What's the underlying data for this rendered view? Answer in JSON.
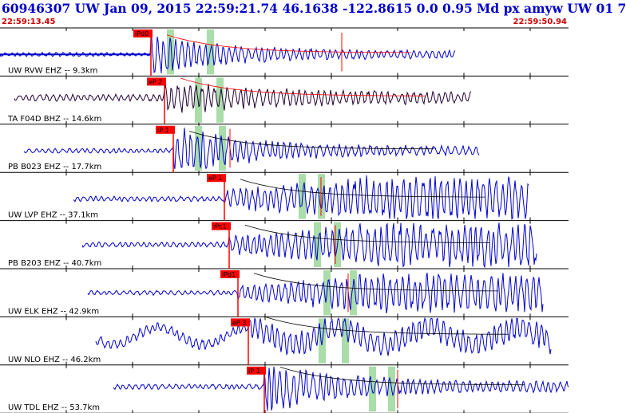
{
  "header": {
    "title": "60946307 UW Jan 09, 2015 22:59:21.74   46.1638 -122.8615  0.0 0.95 Md px amyw UW 01    7",
    "start_time": "22:59:13.45",
    "end_time": "22:59:50.94"
  },
  "colors": {
    "trace": "#0000cc",
    "trace_alt": "#220033",
    "pick": "#ff0000",
    "coda_window": "#aaddaa",
    "label_text": "#000000",
    "header_text": "#0000cc",
    "time_text": "#cc0000"
  },
  "panels": [
    {
      "label": "UW RVW EHZ -- 9.3km",
      "pick": "iPd0",
      "trace_color": "trace",
      "amp": 14,
      "start_pick": 0.26
    },
    {
      "label": "TA F04D BHZ -- 14.6km",
      "pick": "eP 2",
      "trace_color": "trace_alt",
      "amp": 12,
      "start_pick": 0.28
    },
    {
      "label": "PB B023 EHZ -- 17.7km",
      "pick": "iP 1",
      "trace_color": "trace",
      "amp": 16,
      "start_pick": 0.3
    },
    {
      "label": "UW LVP EHZ -- 37.1km",
      "pick": "eP 1",
      "trace_color": "trace",
      "amp": 18,
      "start_pick": 0.39
    },
    {
      "label": "PB B203 EHZ -- 40.7km",
      "pick": "iPc1",
      "trace_color": "trace",
      "amp": 18,
      "start_pick": 0.4
    },
    {
      "label": "UW ELK EHZ -- 42.9km",
      "pick": "iPd1",
      "trace_color": "trace",
      "amp": 16,
      "start_pick": 0.42
    },
    {
      "label": "UW NLO EHZ -- 46.2km",
      "pick": "eP 3",
      "trace_color": "trace",
      "amp": 18,
      "start_pick": 0.44
    },
    {
      "label": "UW TDL EHZ -- 53.7km",
      "pick": "iP 1",
      "trace_color": "trace",
      "amp": 18,
      "start_pick": 0.46
    }
  ]
}
